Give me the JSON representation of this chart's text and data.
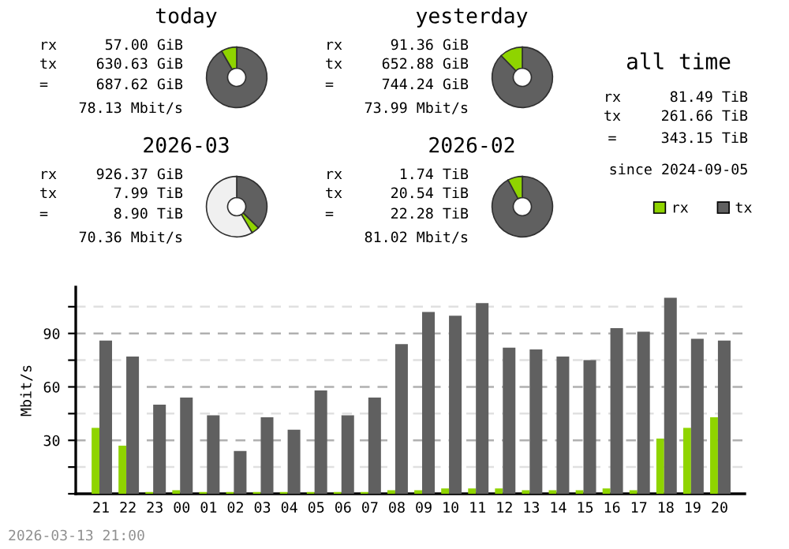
{
  "chart_data": [
    {
      "type": "donut",
      "title": "today",
      "categories": [
        null,
        null
      ],
      "values": [
        91.7,
        8.3
      ],
      "colors": [
        "#606060",
        "#8fd400"
      ],
      "annotations": [
        "rx",
        "57.00 GiB",
        "tx",
        "630.63 GiB",
        "=",
        "687.62 GiB",
        "78.13 Mbit/s"
      ]
    },
    {
      "type": "donut",
      "title": "yesterday",
      "categories": [
        null,
        null
      ],
      "values": [
        87.7,
        12.3
      ],
      "colors": [
        "#606060",
        "#8fd400"
      ],
      "annotations": [
        "rx",
        "91.36 GiB",
        "tx",
        "652.88 GiB",
        "=",
        "744.24 GiB",
        "73.99 Mbit/s"
      ]
    },
    {
      "type": "other",
      "title": "all time",
      "annotations": [
        "rx",
        "81.49 TiB",
        "tx",
        "261.66 TiB",
        "=",
        "343.15 TiB",
        "since 2024-09-05"
      ]
    },
    {
      "type": "donut",
      "title": "2026-03",
      "categories": [
        null,
        null,
        null
      ],
      "values": [
        37.3,
        4.2,
        58.5
      ],
      "colors": [
        "#606060",
        "#8fd400",
        "#f0f0f0"
      ],
      "annotations": [
        "rx",
        "926.37 GiB",
        "tx",
        "7.99 TiB",
        "=",
        "8.90 TiB",
        "70.36 Mbit/s"
      ]
    },
    {
      "type": "donut",
      "title": "2026-02",
      "categories": [
        null,
        null
      ],
      "values": [
        92.2,
        7.8
      ],
      "colors": [
        "#606060",
        "#8fd400"
      ],
      "annotations": [
        "rx",
        "1.74 TiB",
        "tx",
        "20.54 TiB",
        "=",
        "22.28 TiB",
        "81.02 Mbit/s"
      ]
    },
    {
      "type": "bar",
      "ylabel": "Mbit/s",
      "categories": [
        "21",
        "22",
        "23",
        "00",
        "01",
        "02",
        "03",
        "04",
        "05",
        "06",
        "07",
        "08",
        "09",
        "10",
        "11",
        "12",
        "13",
        "14",
        "15",
        "16",
        "17",
        "18",
        "19",
        "20"
      ],
      "series": [
        {
          "name": "rx",
          "color": "#8fd400",
          "values": [
            37,
            27,
            1,
            2,
            1,
            1,
            1,
            1,
            1,
            1,
            1,
            2,
            2,
            3,
            3,
            3,
            2,
            2,
            2,
            3,
            2,
            31,
            37,
            43
          ]
        },
        {
          "name": "tx",
          "color": "#606060",
          "values": [
            86,
            77,
            50,
            54,
            44,
            24,
            43,
            36,
            58,
            44,
            54,
            84,
            102,
            100,
            107,
            82,
            81,
            77,
            75,
            93,
            91,
            110,
            87,
            86
          ]
        }
      ],
      "ylim": [
        0,
        116
      ],
      "yticks": [
        {
          "value": 0,
          "label": null
        },
        {
          "value": 15,
          "label": null
        },
        30,
        {
          "value": 45,
          "label": null
        },
        60,
        {
          "value": 75,
          "label": null
        },
        90,
        {
          "value": 105,
          "label": null
        }
      ],
      "grid": "y",
      "legend": "top right",
      "annotations": [
        "2026-03-13 21:00"
      ]
    }
  ]
}
